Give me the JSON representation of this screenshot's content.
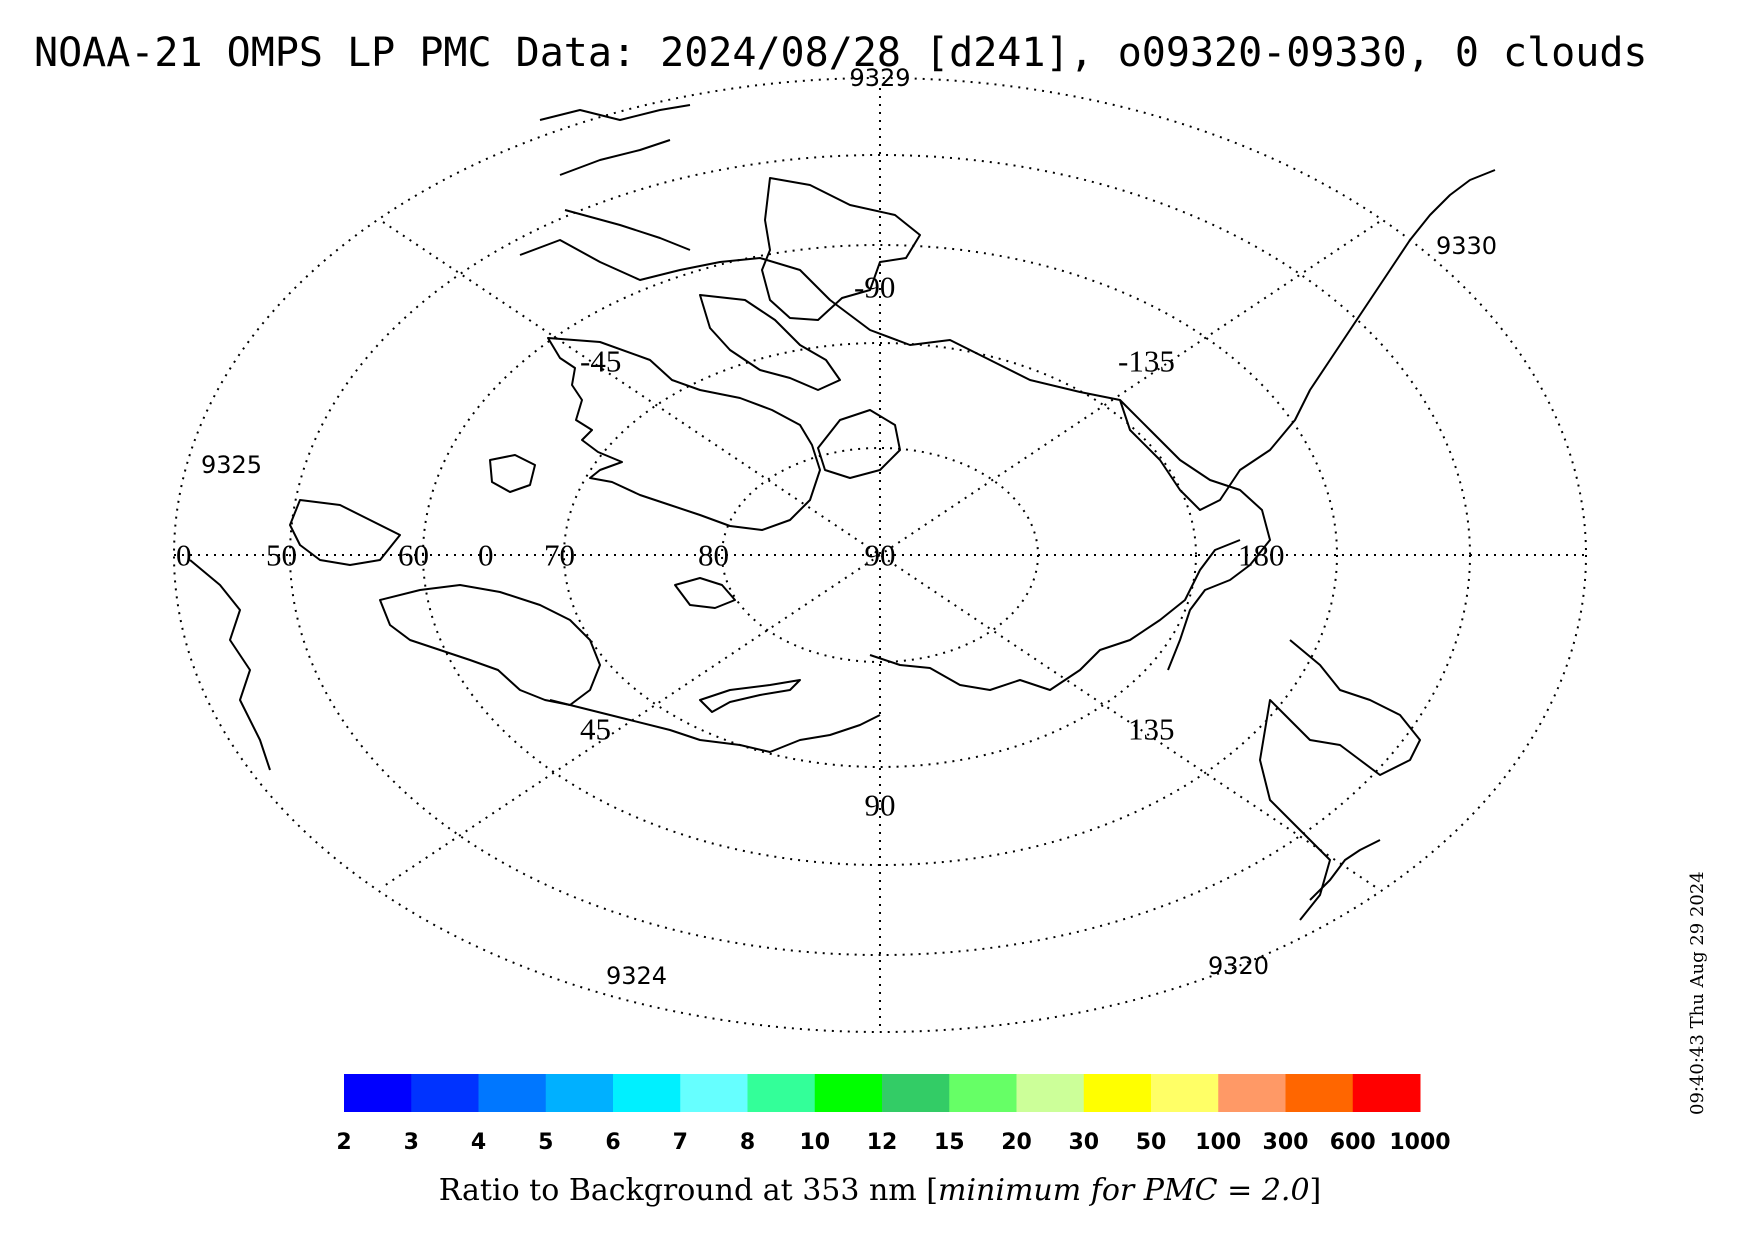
{
  "title": "NOAA-21 OMPS LP PMC Data: 2024/08/28 [d241], o09320-09330, 0 clouds",
  "map": {
    "projection": "polar-stereographic",
    "pole": "north",
    "center_label": "90",
    "latitude_labels": [
      "0",
      "50",
      "60",
      "0",
      "70",
      "80",
      "180"
    ],
    "longitude_labels": {
      "top": "-90",
      "top_left": "-45",
      "top_right": "-135",
      "bottom_left": "45",
      "bottom_right": "135",
      "bottom": "90"
    },
    "orbit_labels": {
      "top": "9329",
      "top_right": "9330",
      "left": "9325",
      "bottom_left": "9324",
      "bottom_right": "9320"
    }
  },
  "colorbar": {
    "tick_labels": [
      "2",
      "3",
      "4",
      "5",
      "6",
      "7",
      "8",
      "10",
      "12",
      "15",
      "20",
      "30",
      "50",
      "100",
      "300",
      "600",
      "1000"
    ],
    "colors": [
      "#0000ff",
      "#0033ff",
      "#0077ff",
      "#00b0ff",
      "#00f0ff",
      "#66ffff",
      "#33ff99",
      "#00ff00",
      "#33cc66",
      "#66ff66",
      "#ccff99",
      "#ffff00",
      "#ffff66",
      "#ff9966",
      "#ff6600",
      "#ff0000"
    ],
    "title_prefix": "Ratio to Background at 353 nm [",
    "title_italic": "minimum for PMC = 2.0",
    "title_suffix": "]"
  },
  "timestamp": "09:40:43 Thu Aug 29 2024"
}
